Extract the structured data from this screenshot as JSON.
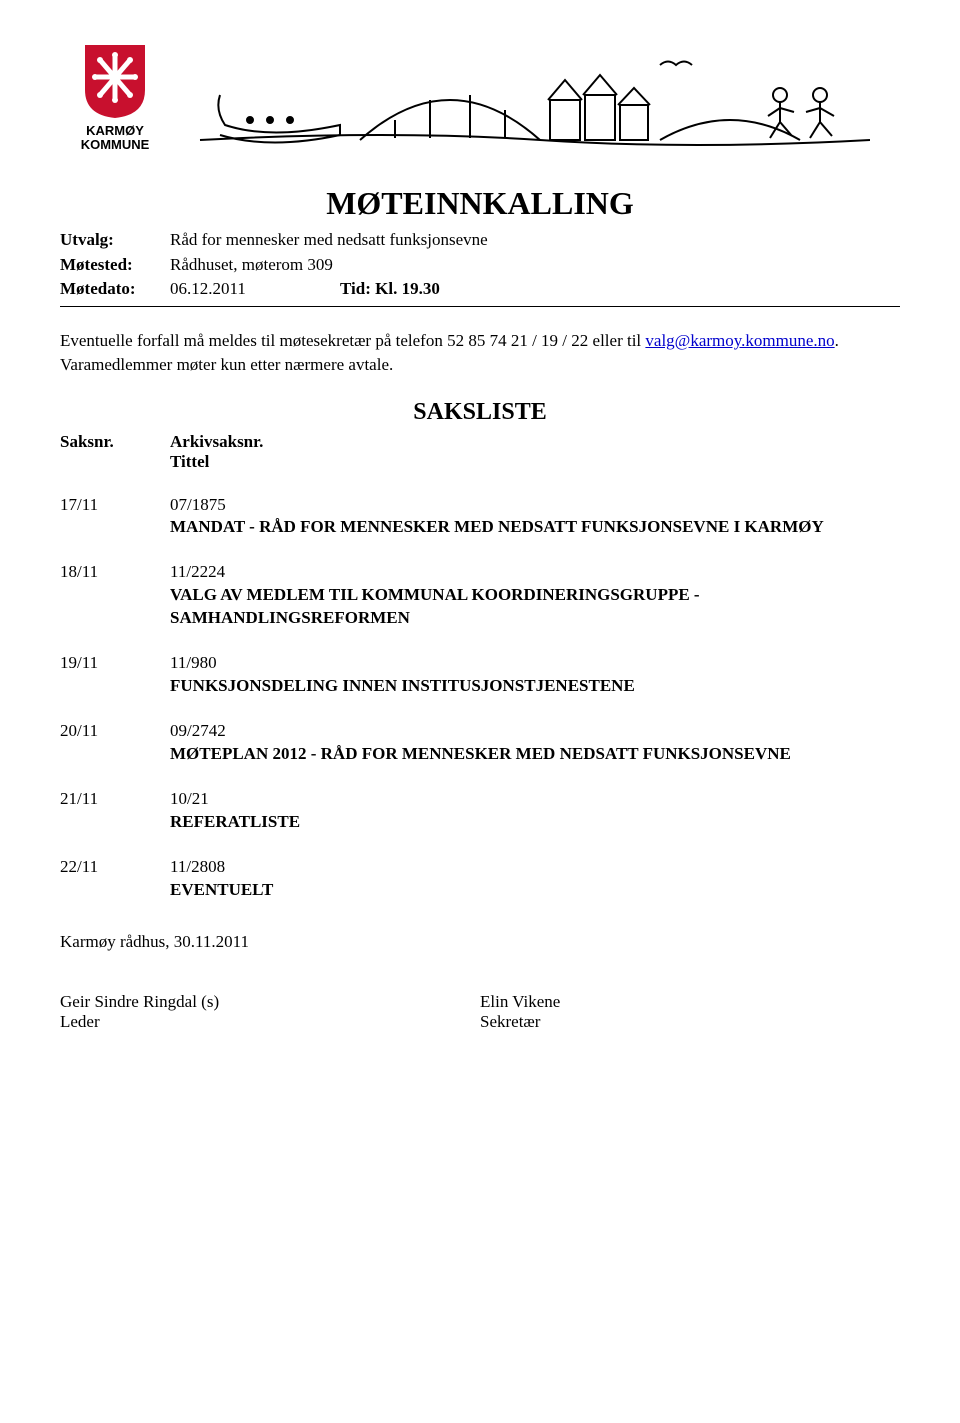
{
  "logo": {
    "line1": "KARMØY",
    "line2": "KOMMUNE",
    "shield_color": "#c8102e"
  },
  "title": "MØTEINNKALLING",
  "meta": {
    "utvalg_label": "Utvalg:",
    "utvalg_value": "Råd for mennesker med nedsatt funksjonsevne",
    "motested_label": "Møtested:",
    "motested_value": "Rådhuset, møterom 309",
    "motedato_label": "Møtedato:",
    "motedato_value": "06.12.2011",
    "tid_label": "Tid: Kl. 19.30"
  },
  "notice_pre": "Eventuelle forfall må meldes til møtesekretær på telefon 52 85 74 21 / 19 / 22 eller til ",
  "notice_link": "valg@karmoy.kommune.no",
  "notice_post": ". Varamedlemmer møter kun etter nærmere avtale.",
  "saksliste_heading": "SAKSLISTE",
  "col_saksnr": "Saksnr.",
  "col_arkiv": "Arkivsaksnr.",
  "col_tittel": "Tittel",
  "items": [
    {
      "saksnr": "17/11",
      "arkiv": "07/1875",
      "title": "MANDAT - RÅD FOR MENNESKER MED NEDSATT FUNKSJONSEVNE I KARMØY"
    },
    {
      "saksnr": "18/11",
      "arkiv": "11/2224",
      "title": "VALG AV MEDLEM TIL KOMMUNAL KOORDINERINGSGRUPPE - SAMHANDLINGSREFORMEN"
    },
    {
      "saksnr": "19/11",
      "arkiv": "11/980",
      "title": "FUNKSJONSDELING INNEN INSTITUSJONSTJENESTENE"
    },
    {
      "saksnr": "20/11",
      "arkiv": "09/2742",
      "title": "MØTEPLAN 2012 - RÅD FOR MENNESKER MED NEDSATT FUNKSJONSEVNE"
    },
    {
      "saksnr": "21/11",
      "arkiv": "10/21",
      "title": "REFERATLISTE"
    },
    {
      "saksnr": "22/11",
      "arkiv": "11/2808",
      "title": "EVENTUELT"
    }
  ],
  "footer_date": "Karmøy rådhus, 30.11.2011",
  "sign": {
    "left_name": "Geir Sindre Ringdal (s)",
    "left_role": "Leder",
    "right_name": "Elin Vikene",
    "right_role": "Sekretær"
  }
}
